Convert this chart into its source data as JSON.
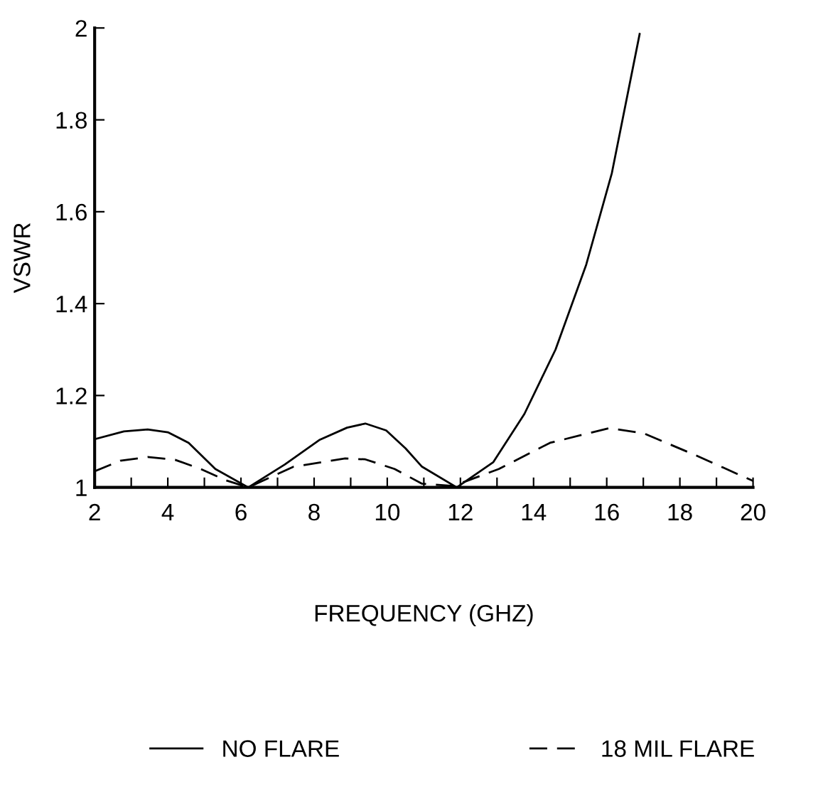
{
  "chart_data": {
    "type": "line",
    "xlabel": "FREQUENCY (GHZ)",
    "ylabel": "VSWR",
    "xlim": [
      2,
      20
    ],
    "ylim": [
      1,
      2
    ],
    "xticks": [
      2,
      {
        "value": 3,
        "label": null
      },
      4,
      {
        "value": 5,
        "label": null
      },
      6,
      {
        "value": 7,
        "label": null
      },
      8,
      {
        "value": 9,
        "label": null
      },
      10,
      {
        "value": 11,
        "label": null
      },
      12,
      {
        "value": 13,
        "label": null
      },
      14,
      {
        "value": 15,
        "label": null
      },
      16,
      {
        "value": 17,
        "label": null
      },
      18,
      {
        "value": 19,
        "label": null
      },
      20
    ],
    "yticks": [
      1,
      1.2,
      1.4,
      1.6,
      1.8,
      2
    ],
    "grid": false,
    "legend": "bottom",
    "marker": "none",
    "series": [
      {
        "name": "NO FLARE",
        "color": "#000000",
        "line_style": "solid",
        "x": [
          2,
          2.8,
          3.45,
          4.0,
          4.57,
          5.3,
          6.2,
          7.2,
          8.14,
          8.9,
          9.4,
          9.97,
          10.5,
          10.95,
          11.9,
          12.9,
          13.75,
          14.6,
          15.44,
          16.14,
          16.9
        ],
        "values": [
          1.105,
          1.122,
          1.126,
          1.12,
          1.097,
          1.04,
          1.0,
          1.05,
          1.103,
          1.13,
          1.139,
          1.124,
          1.085,
          1.045,
          1.0,
          1.055,
          1.16,
          1.3,
          1.485,
          1.684,
          1.987
        ]
      },
      {
        "name": "18 MIL FLARE",
        "color": "#000000",
        "line_style": "dashed",
        "x": [
          2,
          2.7,
          3.45,
          4.2,
          4.9,
          5.6,
          6.2,
          7.44,
          8.85,
          9.4,
          10.2,
          10.95,
          11.8,
          13.05,
          14.45,
          16.07,
          17,
          18.4,
          20
        ],
        "values": [
          1.035,
          1.058,
          1.066,
          1.06,
          1.04,
          1.015,
          1.0,
          1.045,
          1.063,
          1.061,
          1.04,
          1.008,
          1.003,
          1.04,
          1.097,
          1.129,
          1.118,
          1.071,
          1.014
        ]
      }
    ]
  }
}
